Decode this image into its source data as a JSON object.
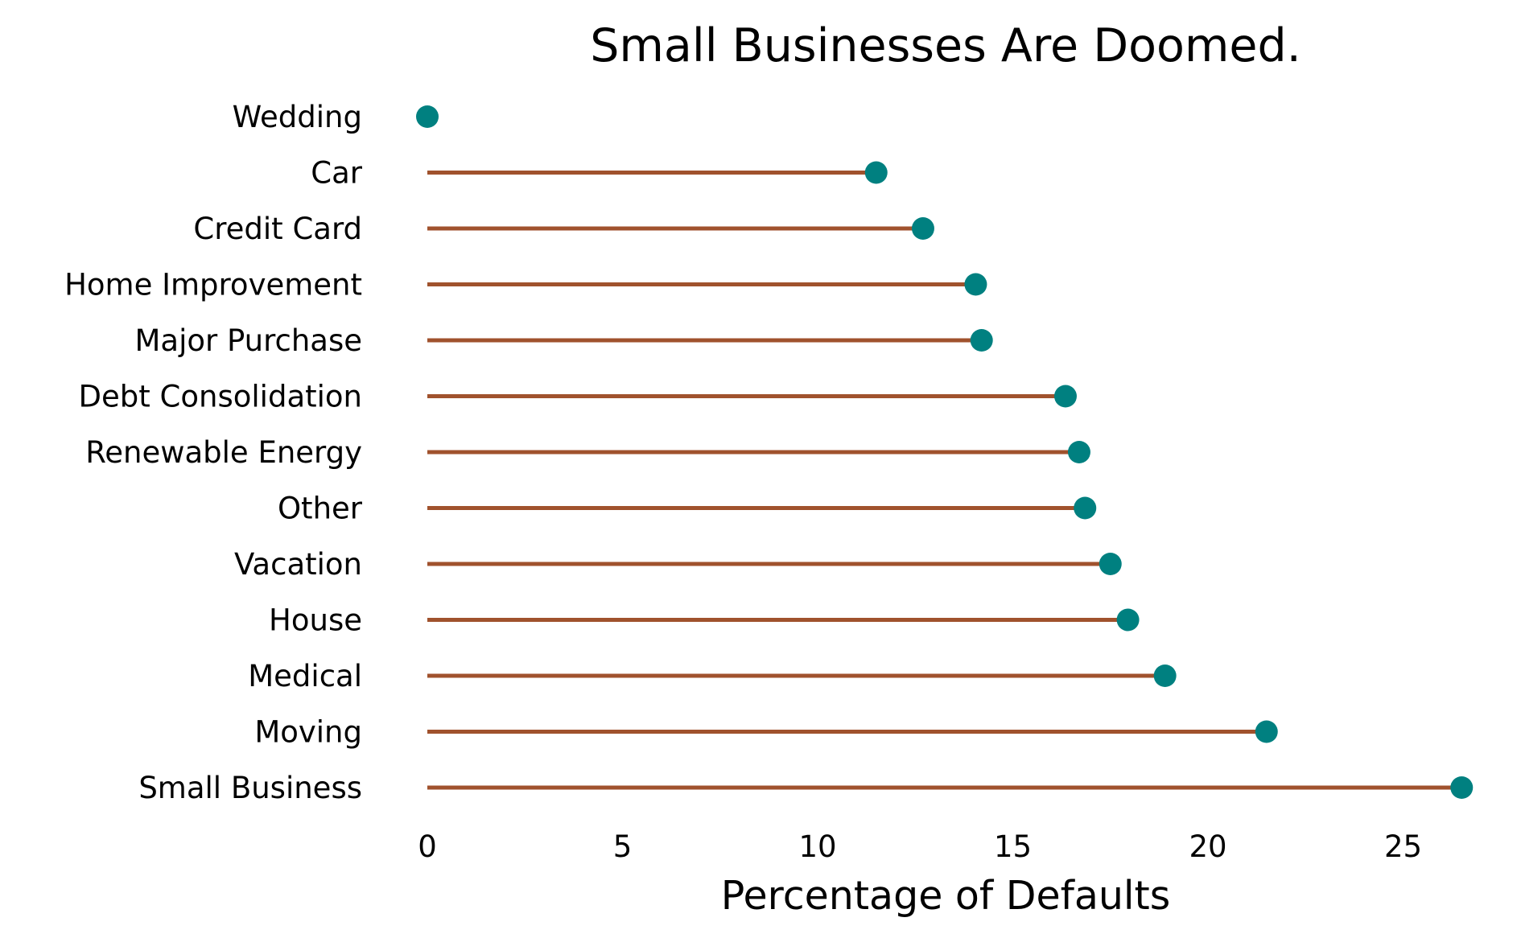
{
  "chart_data": {
    "type": "lollipop",
    "orientation": "horizontal",
    "title": "Small Businesses Are Doomed.",
    "xlabel": "Percentage of Defaults",
    "ylabel": "",
    "categories": [
      "Wedding",
      "Car",
      "Credit Card",
      "Home Improvement",
      "Major Purchase",
      "Debt Consolidation",
      "Renewable Energy",
      "Other",
      "Vacation",
      "House",
      "Medical",
      "Moving",
      "Small Business"
    ],
    "values": [
      0.0,
      11.5,
      12.7,
      14.05,
      14.2,
      16.35,
      16.7,
      16.85,
      17.5,
      17.95,
      18.9,
      21.5,
      26.5
    ],
    "xlim": [
      0,
      26.5
    ],
    "xticks": [
      0,
      5,
      10,
      15,
      20,
      25
    ],
    "grid": false,
    "legend": "none",
    "stem_color": "#a0522d",
    "marker_color": "#008080"
  }
}
